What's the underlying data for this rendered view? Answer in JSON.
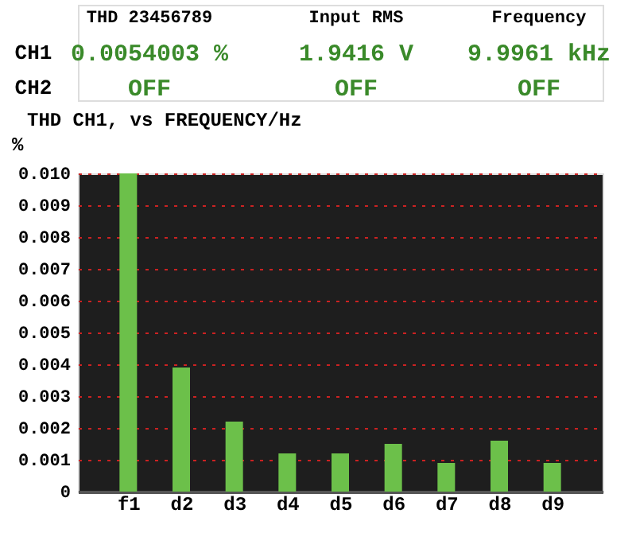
{
  "chart_data": {
    "type": "bar",
    "title": "THD CH1, vs FREQUENCY/Hz",
    "ylabel": "%",
    "annotations": [
      "THD 23456789",
      "Input RMS",
      "Frequency",
      "CH1",
      "CH2",
      "0.0054003 %",
      "1.9416  V",
      "9.9961 kHz",
      "OFF",
      "OFF",
      "OFF"
    ],
    "categories": [
      "f1",
      "d2",
      "d3",
      "d4",
      "d5",
      "d6",
      "d7",
      "d8",
      "d9"
    ],
    "values": [
      0.01,
      0.0039,
      0.0022,
      0.0012,
      0.0012,
      0.0015,
      0.0009,
      0.0016,
      0.0009
    ],
    "color": "#6cc04a",
    "ylim": [
      0,
      0.01
    ],
    "yticks": [
      0,
      0.001,
      0.002,
      0.003,
      0.004,
      0.005,
      0.006,
      0.007,
      0.008,
      0.009,
      {
        "value": 0.01,
        "label": "0.010"
      }
    ],
    "grid": "y"
  }
}
